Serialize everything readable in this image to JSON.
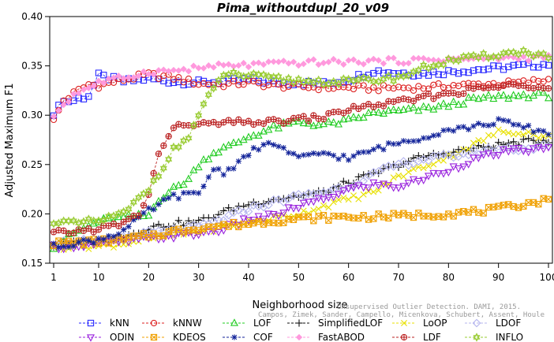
{
  "chart_data": {
    "type": "line",
    "title": "Pima_withoutdupl_20_v09",
    "xlabel": "Neighborhood size",
    "ylabel": "Adjusted Maximum F1",
    "xlim": [
      1,
      100
    ],
    "ylim": [
      0.15,
      0.4
    ],
    "xticks": [
      1,
      10,
      20,
      30,
      40,
      50,
      60,
      70,
      80,
      90,
      100
    ],
    "yticks": [
      "0.15",
      "0.20",
      "0.25",
      "0.30",
      "0.35",
      "0.40"
    ],
    "grid": false,
    "legend_position": "bottom",
    "watermark_lines": [
      "Unsupervised Outlier Detection. DAMI, 2015.",
      "Campos, Zimek, Sander, Campello, Micenkova, Schubert, Assent, Houle"
    ],
    "series": [
      {
        "name": "kNN",
        "color": "#2b2bff",
        "marker": "square",
        "points": [
          [
            1,
            0.297
          ],
          [
            2,
            0.313
          ],
          [
            5,
            0.315
          ],
          [
            8,
            0.32
          ],
          [
            10,
            0.34
          ],
          [
            15,
            0.334
          ],
          [
            20,
            0.337
          ],
          [
            25,
            0.334
          ],
          [
            30,
            0.333
          ],
          [
            35,
            0.334
          ],
          [
            40,
            0.336
          ],
          [
            45,
            0.333
          ],
          [
            50,
            0.333
          ],
          [
            55,
            0.332
          ],
          [
            60,
            0.336
          ],
          [
            65,
            0.345
          ],
          [
            70,
            0.343
          ],
          [
            75,
            0.342
          ],
          [
            80,
            0.344
          ],
          [
            85,
            0.346
          ],
          [
            90,
            0.348
          ],
          [
            95,
            0.35
          ],
          [
            100,
            0.352
          ]
        ]
      },
      {
        "name": "kNNW",
        "color": "#dd2222",
        "marker": "circle",
        "points": [
          [
            1,
            0.294
          ],
          [
            3,
            0.315
          ],
          [
            5,
            0.322
          ],
          [
            8,
            0.331
          ],
          [
            10,
            0.33
          ],
          [
            15,
            0.336
          ],
          [
            20,
            0.341
          ],
          [
            25,
            0.338
          ],
          [
            30,
            0.332
          ],
          [
            35,
            0.331
          ],
          [
            40,
            0.333
          ],
          [
            45,
            0.33
          ],
          [
            50,
            0.329
          ],
          [
            55,
            0.328
          ],
          [
            60,
            0.328
          ],
          [
            65,
            0.327
          ],
          [
            70,
            0.328
          ],
          [
            75,
            0.328
          ],
          [
            80,
            0.33
          ],
          [
            85,
            0.331
          ],
          [
            90,
            0.332
          ],
          [
            95,
            0.333
          ],
          [
            100,
            0.336
          ]
        ]
      },
      {
        "name": "LOF",
        "color": "#22cc22",
        "marker": "triangle",
        "points": [
          [
            1,
            0.167
          ],
          [
            5,
            0.18
          ],
          [
            10,
            0.192
          ],
          [
            15,
            0.196
          ],
          [
            20,
            0.198
          ],
          [
            22,
            0.215
          ],
          [
            25,
            0.225
          ],
          [
            28,
            0.235
          ],
          [
            30,
            0.25
          ],
          [
            33,
            0.262
          ],
          [
            37,
            0.27
          ],
          [
            40,
            0.278
          ],
          [
            45,
            0.287
          ],
          [
            50,
            0.293
          ],
          [
            55,
            0.29
          ],
          [
            60,
            0.294
          ],
          [
            65,
            0.302
          ],
          [
            70,
            0.304
          ],
          [
            75,
            0.306
          ],
          [
            80,
            0.31
          ],
          [
            85,
            0.316
          ],
          [
            90,
            0.318
          ],
          [
            95,
            0.32
          ],
          [
            100,
            0.32
          ]
        ]
      },
      {
        "name": "SimplifiedLOF",
        "color": "#111111",
        "marker": "plus",
        "points": [
          [
            1,
            0.167
          ],
          [
            5,
            0.17
          ],
          [
            10,
            0.172
          ],
          [
            15,
            0.177
          ],
          [
            20,
            0.186
          ],
          [
            25,
            0.19
          ],
          [
            30,
            0.192
          ],
          [
            35,
            0.202
          ],
          [
            40,
            0.21
          ],
          [
            45,
            0.215
          ],
          [
            50,
            0.218
          ],
          [
            55,
            0.222
          ],
          [
            60,
            0.232
          ],
          [
            65,
            0.24
          ],
          [
            70,
            0.25
          ],
          [
            75,
            0.258
          ],
          [
            80,
            0.262
          ],
          [
            85,
            0.266
          ],
          [
            90,
            0.27
          ],
          [
            95,
            0.273
          ],
          [
            100,
            0.275
          ]
        ]
      },
      {
        "name": "LoOP",
        "color": "#e8e000",
        "marker": "x",
        "points": [
          [
            1,
            0.165
          ],
          [
            5,
            0.168
          ],
          [
            10,
            0.167
          ],
          [
            15,
            0.17
          ],
          [
            20,
            0.175
          ],
          [
            25,
            0.178
          ],
          [
            30,
            0.182
          ],
          [
            35,
            0.187
          ],
          [
            40,
            0.192
          ],
          [
            45,
            0.196
          ],
          [
            50,
            0.2
          ],
          [
            55,
            0.208
          ],
          [
            60,
            0.215
          ],
          [
            65,
            0.222
          ],
          [
            70,
            0.238
          ],
          [
            75,
            0.248
          ],
          [
            80,
            0.258
          ],
          [
            85,
            0.27
          ],
          [
            90,
            0.283
          ],
          [
            95,
            0.283
          ],
          [
            100,
            0.277
          ]
        ]
      },
      {
        "name": "LDOF",
        "color": "#b4b4ee",
        "marker": "diamond",
        "points": [
          [
            1,
            0.17
          ],
          [
            5,
            0.172
          ],
          [
            10,
            0.172
          ],
          [
            15,
            0.176
          ],
          [
            20,
            0.18
          ],
          [
            25,
            0.183
          ],
          [
            30,
            0.186
          ],
          [
            35,
            0.195
          ],
          [
            40,
            0.205
          ],
          [
            45,
            0.212
          ],
          [
            50,
            0.218
          ],
          [
            55,
            0.222
          ],
          [
            60,
            0.228
          ],
          [
            65,
            0.24
          ],
          [
            70,
            0.25
          ],
          [
            75,
            0.255
          ],
          [
            80,
            0.258
          ],
          [
            85,
            0.262
          ],
          [
            90,
            0.266
          ],
          [
            95,
            0.266
          ],
          [
            100,
            0.268
          ]
        ]
      },
      {
        "name": "ODIN",
        "color": "#9922dd",
        "marker": "triangle-down",
        "points": [
          [
            1,
            0.167
          ],
          [
            5,
            0.168
          ],
          [
            10,
            0.17
          ],
          [
            15,
            0.172
          ],
          [
            20,
            0.175
          ],
          [
            25,
            0.178
          ],
          [
            30,
            0.18
          ],
          [
            35,
            0.185
          ],
          [
            40,
            0.195
          ],
          [
            45,
            0.198
          ],
          [
            50,
            0.208
          ],
          [
            55,
            0.215
          ],
          [
            60,
            0.225
          ],
          [
            65,
            0.23
          ],
          [
            70,
            0.228
          ],
          [
            75,
            0.236
          ],
          [
            80,
            0.245
          ],
          [
            85,
            0.255
          ],
          [
            90,
            0.262
          ],
          [
            95,
            0.265
          ],
          [
            100,
            0.266
          ]
        ]
      },
      {
        "name": "KDEOS",
        "color": "#f0a000",
        "marker": "boxtimes",
        "points": [
          [
            1,
            0.17
          ],
          [
            5,
            0.171
          ],
          [
            10,
            0.172
          ],
          [
            15,
            0.174
          ],
          [
            20,
            0.178
          ],
          [
            25,
            0.182
          ],
          [
            30,
            0.186
          ],
          [
            35,
            0.188
          ],
          [
            40,
            0.19
          ],
          [
            45,
            0.193
          ],
          [
            50,
            0.195
          ],
          [
            55,
            0.196
          ],
          [
            60,
            0.197
          ],
          [
            65,
            0.197
          ],
          [
            70,
            0.198
          ],
          [
            75,
            0.199
          ],
          [
            80,
            0.2
          ],
          [
            85,
            0.202
          ],
          [
            90,
            0.205
          ],
          [
            95,
            0.21
          ],
          [
            100,
            0.214
          ]
        ]
      },
      {
        "name": "COF",
        "color": "#112299",
        "marker": "asterisk",
        "points": [
          [
            1,
            0.167
          ],
          [
            5,
            0.17
          ],
          [
            10,
            0.174
          ],
          [
            15,
            0.183
          ],
          [
            20,
            0.203
          ],
          [
            25,
            0.218
          ],
          [
            30,
            0.22
          ],
          [
            33,
            0.246
          ],
          [
            35,
            0.242
          ],
          [
            38,
            0.252
          ],
          [
            40,
            0.262
          ],
          [
            45,
            0.272
          ],
          [
            50,
            0.256
          ],
          [
            55,
            0.262
          ],
          [
            60,
            0.256
          ],
          [
            65,
            0.265
          ],
          [
            70,
            0.272
          ],
          [
            75,
            0.278
          ],
          [
            80,
            0.286
          ],
          [
            85,
            0.288
          ],
          [
            90,
            0.294
          ],
          [
            95,
            0.288
          ],
          [
            100,
            0.282
          ]
        ]
      },
      {
        "name": "FastABOD",
        "color": "#ff99dd",
        "marker": "diamond-filled",
        "points": [
          [
            1,
            0.3
          ],
          [
            5,
            0.321
          ],
          [
            10,
            0.333
          ],
          [
            15,
            0.338
          ],
          [
            20,
            0.344
          ],
          [
            25,
            0.345
          ],
          [
            30,
            0.348
          ],
          [
            35,
            0.35
          ],
          [
            40,
            0.351
          ],
          [
            45,
            0.352
          ],
          [
            50,
            0.353
          ],
          [
            55,
            0.354
          ],
          [
            60,
            0.354
          ],
          [
            65,
            0.355
          ],
          [
            70,
            0.355
          ],
          [
            75,
            0.356
          ],
          [
            80,
            0.357
          ],
          [
            85,
            0.357
          ],
          [
            90,
            0.358
          ],
          [
            95,
            0.358
          ],
          [
            100,
            0.359
          ]
        ]
      },
      {
        "name": "LDF",
        "color": "#bb2222",
        "marker": "circle-plus",
        "points": [
          [
            1,
            0.18
          ],
          [
            5,
            0.182
          ],
          [
            10,
            0.185
          ],
          [
            15,
            0.19
          ],
          [
            18,
            0.2
          ],
          [
            20,
            0.218
          ],
          [
            22,
            0.262
          ],
          [
            25,
            0.286
          ],
          [
            28,
            0.292
          ],
          [
            30,
            0.29
          ],
          [
            35,
            0.292
          ],
          [
            40,
            0.293
          ],
          [
            45,
            0.293
          ],
          [
            50,
            0.296
          ],
          [
            55,
            0.298
          ],
          [
            60,
            0.306
          ],
          [
            65,
            0.31
          ],
          [
            70,
            0.313
          ],
          [
            75,
            0.318
          ],
          [
            80,
            0.322
          ],
          [
            85,
            0.326
          ],
          [
            90,
            0.329
          ],
          [
            95,
            0.33
          ],
          [
            100,
            0.33
          ]
        ]
      },
      {
        "name": "INFLO",
        "color": "#99cc33",
        "marker": "star-of-david",
        "points": [
          [
            1,
            0.193
          ],
          [
            5,
            0.19
          ],
          [
            10,
            0.193
          ],
          [
            15,
            0.2
          ],
          [
            20,
            0.225
          ],
          [
            25,
            0.265
          ],
          [
            28,
            0.278
          ],
          [
            30,
            0.3
          ],
          [
            32,
            0.318
          ],
          [
            35,
            0.342
          ],
          [
            40,
            0.34
          ],
          [
            45,
            0.337
          ],
          [
            50,
            0.335
          ],
          [
            55,
            0.334
          ],
          [
            60,
            0.334
          ],
          [
            65,
            0.336
          ],
          [
            70,
            0.338
          ],
          [
            75,
            0.348
          ],
          [
            80,
            0.355
          ],
          [
            85,
            0.358
          ],
          [
            90,
            0.362
          ],
          [
            95,
            0.364
          ],
          [
            100,
            0.36
          ]
        ]
      }
    ],
    "legend_rows": [
      [
        "kNN",
        "kNNW",
        "LOF",
        "SimplifiedLOF",
        "LoOP",
        "LDOF"
      ],
      [
        "ODIN",
        "KDEOS",
        "COF",
        "FastABOD",
        "LDF",
        "INFLO"
      ]
    ]
  }
}
